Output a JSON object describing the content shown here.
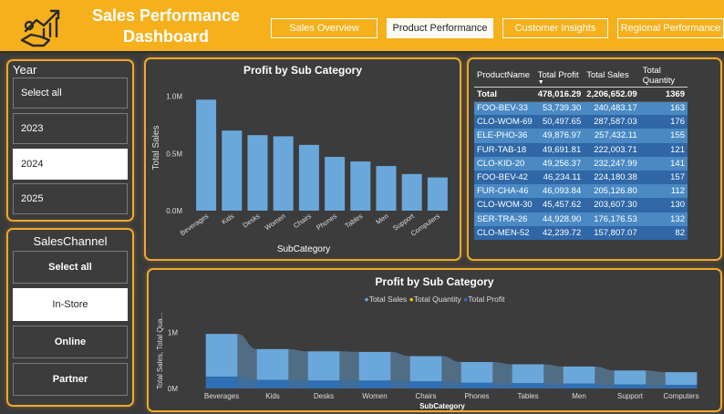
{
  "header": {
    "title_line1": "Sales Performance",
    "title_line2": "Dashboard",
    "nav": [
      "Sales Overview",
      "Product Performance",
      "Customer Insights",
      "Regional Performance"
    ],
    "active_nav": "Product Performance"
  },
  "year_slicer": {
    "title": "Year",
    "options": [
      "Select all",
      "2023",
      "2024",
      "2025"
    ],
    "selected": "2024"
  },
  "channel_slicer": {
    "title": "SalesChannel",
    "options": [
      "Select all",
      "In-Store",
      "Online",
      "Partner"
    ],
    "selected": "In-Store"
  },
  "bar_chart": {
    "title": "Profit by Sub Category",
    "ylabel": "Total Sales",
    "xlabel": "SubCategory",
    "y_ticks": [
      "1.0M",
      "0.5M",
      "0.0M"
    ]
  },
  "matrix": {
    "columns": [
      "ProductName",
      "Total Profit",
      "Total Sales",
      "Total Quantity"
    ],
    "total": {
      "name": "Total",
      "profit": "478,016.29",
      "sales": "2,206,652.09",
      "qty": "1369"
    },
    "rows": [
      {
        "name": "FOO-BEV-33",
        "profit": "53,739.30",
        "sales": "240,483.17",
        "qty": "163"
      },
      {
        "name": "CLO-WOM-69",
        "profit": "50,497.65",
        "sales": "287,587.03",
        "qty": "176"
      },
      {
        "name": "ELE-PHO-36",
        "profit": "49,876.97",
        "sales": "257,432.11",
        "qty": "155"
      },
      {
        "name": "FUR-TAB-18",
        "profit": "49,691.81",
        "sales": "222,003.71",
        "qty": "121"
      },
      {
        "name": "CLO-KID-20",
        "profit": "49,256.37",
        "sales": "232,247.99",
        "qty": "141"
      },
      {
        "name": "FOO-BEV-42",
        "profit": "46,234.11",
        "sales": "224,180.38",
        "qty": "157"
      },
      {
        "name": "FUR-CHA-46",
        "profit": "46,093.84",
        "sales": "205,126.80",
        "qty": "112"
      },
      {
        "name": "CLO-WOM-30",
        "profit": "45,457.62",
        "sales": "203,607.30",
        "qty": "130"
      },
      {
        "name": "SER-TRA-26",
        "profit": "44,928.90",
        "sales": "176,176.53",
        "qty": "132"
      },
      {
        "name": "CLO-MEN-52",
        "profit": "42,239.72",
        "sales": "157,807.07",
        "qty": "82"
      }
    ]
  },
  "ribbon_chart": {
    "title": "Profit by Sub Category",
    "legend": [
      "Total Sales",
      "Total Quantity",
      "Total Profit"
    ],
    "ylabel": "Total Sales, Total Qua...",
    "xlabel": "SubCategory",
    "y_ticks": [
      "1M",
      "0M"
    ]
  },
  "colors": {
    "accent": "#f5b01b",
    "bar": "#6aa8dc",
    "sales": "#6aa8dc",
    "quantity": "#f5c518",
    "profit": "#2f6fb3"
  },
  "chart_data": [
    {
      "type": "bar",
      "title": "Profit by Sub Category",
      "xlabel": "SubCategory",
      "ylabel": "Total Sales",
      "ylim": [
        0,
        1100000
      ],
      "grid": false,
      "categories": [
        "Beverages",
        "Kids",
        "Desks",
        "Women",
        "Chairs",
        "Phones",
        "Tables",
        "Men",
        "Support",
        "Computers"
      ],
      "values": [
        970000,
        700000,
        660000,
        650000,
        575000,
        470000,
        430000,
        390000,
        320000,
        290000
      ]
    },
    {
      "type": "area",
      "title": "Profit by Sub Category",
      "xlabel": "SubCategory",
      "ylabel": "Total Sales, Total Qua...",
      "legend_position": "top",
      "categories": [
        "Beverages",
        "Kids",
        "Desks",
        "Women",
        "Chairs",
        "Phones",
        "Tables",
        "Men",
        "Support",
        "Computers"
      ],
      "series": [
        {
          "name": "Total Sales",
          "values": [
            970000,
            700000,
            660000,
            650000,
            575000,
            470000,
            430000,
            390000,
            320000,
            290000
          ]
        },
        {
          "name": "Total Quantity",
          "values": [
            560,
            410,
            390,
            380,
            340,
            280,
            250,
            230,
            190,
            170
          ]
        },
        {
          "name": "Total Profit",
          "values": [
            210000,
            150000,
            140000,
            140000,
            125000,
            100000,
            93000,
            85000,
            70000,
            62000
          ]
        }
      ]
    }
  ]
}
